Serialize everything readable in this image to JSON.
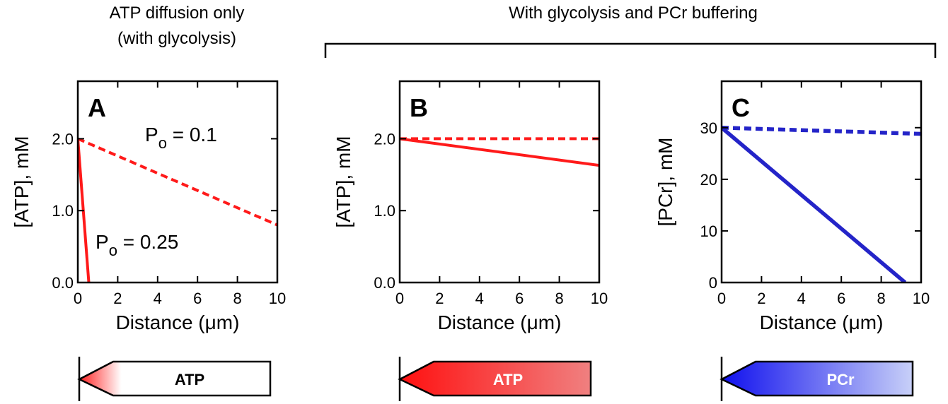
{
  "headers": {
    "left": [
      "ATP diffusion only",
      "(with glycolysis)"
    ],
    "right": "With glycolysis and PCr buffering"
  },
  "gradient_labels": [
    "ATP",
    "ATP",
    "PCr"
  ],
  "chart_data": [
    {
      "type": "line",
      "panel_label": "A",
      "x_label": "Distance (μm)",
      "y_label": "[ATP], mM",
      "xlim": [
        0,
        10
      ],
      "ylim": [
        0,
        2.8
      ],
      "xticks": [
        0,
        2,
        4,
        6,
        8,
        10
      ],
      "yticks": [
        {
          "value": 0,
          "label": "0.0"
        },
        {
          "value": 1,
          "label": "1.0"
        },
        {
          "value": 2,
          "label": "2.0"
        }
      ],
      "series": [
        {
          "color": "#ff1a1a",
          "line_style": "dashed",
          "x": [
            0,
            10
          ],
          "values": [
            2,
            0.8
          ]
        },
        {
          "color": "#ff1a1a",
          "line_style": "solid",
          "x": [
            0,
            0.55
          ],
          "values": [
            2,
            0
          ]
        }
      ],
      "annotations": [
        {
          "parts": [
            "P",
            "o",
            " = 0.1"
          ]
        },
        {
          "parts": [
            "P",
            "o",
            " = 0.25"
          ]
        }
      ]
    },
    {
      "type": "line",
      "panel_label": "B",
      "x_label": "Distance (μm)",
      "y_label": "[ATP], mM",
      "xlim": [
        0,
        10
      ],
      "ylim": [
        0,
        2.8
      ],
      "xticks": [
        0,
        2,
        4,
        6,
        8,
        10
      ],
      "yticks": [
        {
          "value": 0,
          "label": "0.0"
        },
        {
          "value": 1,
          "label": "1.0"
        },
        {
          "value": 2,
          "label": "2.0"
        }
      ],
      "series": [
        {
          "color": "#ff1a1a",
          "line_style": "dashed",
          "x": [
            0,
            10
          ],
          "values": [
            2,
            2
          ]
        },
        {
          "color": "#ff1a1a",
          "line_style": "solid",
          "x": [
            0,
            10
          ],
          "values": [
            2,
            1.63
          ]
        }
      ]
    },
    {
      "type": "line",
      "panel_label": "C",
      "x_label": "Distance (μm)",
      "y_label": "[PCr], mM",
      "xlim": [
        0,
        10
      ],
      "ylim": [
        0,
        39
      ],
      "xticks": [
        0,
        2,
        4,
        6,
        8,
        10
      ],
      "yticks": [
        0,
        10,
        20,
        30
      ],
      "series": [
        {
          "color": "#2424c8",
          "line_style": "dashed",
          "x": [
            0,
            10
          ],
          "values": [
            30,
            28.8
          ]
        },
        {
          "color": "#2424c8",
          "line_style": "solid",
          "x": [
            0,
            9.2
          ],
          "values": [
            30,
            0
          ]
        }
      ]
    }
  ]
}
